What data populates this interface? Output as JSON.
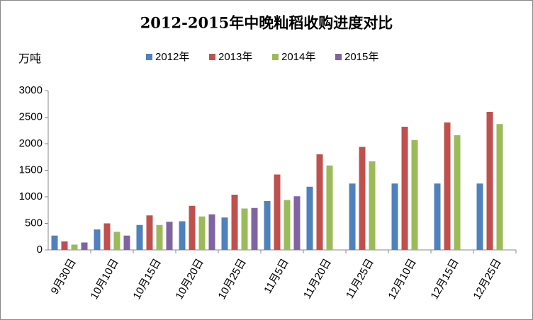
{
  "chart_data": {
    "type": "bar",
    "title": "2012-2015年中晚籼稻收购进度对比",
    "y_label": "万吨",
    "categories": [
      "9月30日",
      "10月10日",
      "10月15日",
      "10月20日",
      "10月25日",
      "11月5日",
      "11月20日",
      "11月25日",
      "12月10日",
      "12月15日",
      "12月25日"
    ],
    "series": [
      {
        "name": "2012年",
        "color": "#4f81bd",
        "values": [
          270,
          385,
          470,
          540,
          610,
          920,
          1190,
          1250,
          1250,
          1250,
          1250
        ]
      },
      {
        "name": "2013年",
        "color": "#c0504d",
        "values": [
          160,
          500,
          650,
          830,
          1040,
          1420,
          1800,
          1940,
          2320,
          2400,
          2600
        ]
      },
      {
        "name": "2014年",
        "color": "#9bbb59",
        "values": [
          100,
          340,
          470,
          630,
          780,
          940,
          1590,
          1670,
          2070,
          2160,
          2370
        ]
      },
      {
        "name": "2015年",
        "color": "#8064a2",
        "values": [
          140,
          270,
          530,
          670,
          790,
          1010,
          null,
          null,
          null,
          null,
          null
        ]
      }
    ],
    "ylim": [
      0,
      3000
    ],
    "yticks": [
      0,
      500,
      1000,
      1500,
      2000,
      2500,
      3000
    ],
    "grid": false,
    "legend": "top"
  }
}
